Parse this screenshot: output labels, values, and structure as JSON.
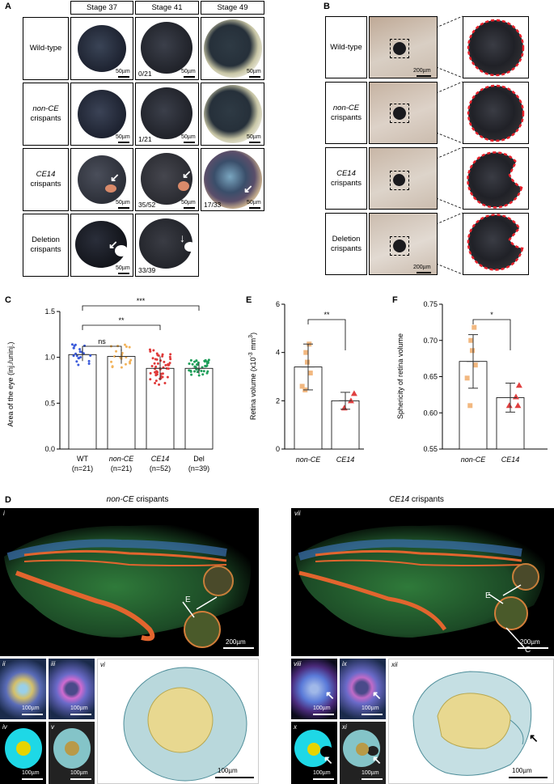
{
  "panelA": {
    "label": "A",
    "columns": [
      "Stage 37",
      "Stage 41",
      "Stage 49"
    ],
    "rows": [
      {
        "l1": "Wild-type",
        "l2": "",
        "italic": false
      },
      {
        "l1": "non-CE",
        "l2": "crispants",
        "italic": true
      },
      {
        "l1": "CE14",
        "l2": "crispants",
        "italic": true
      },
      {
        "l1": "Deletion",
        "l2": "crispants",
        "italic": false
      }
    ],
    "scale": "50µm",
    "fractions": {
      "wt41": "0/21",
      "nonce41": "1/21",
      "ce41": "35/52",
      "ce49": "17/33",
      "del41": "33/39"
    }
  },
  "panelB": {
    "label": "B",
    "rows": [
      {
        "l1": "Wild-type",
        "l2": "",
        "italic": false
      },
      {
        "l1": "non-CE",
        "l2": "crispants",
        "italic": true
      },
      {
        "l1": "CE14",
        "l2": "crispants",
        "italic": true
      },
      {
        "l1": "Deletion",
        "l2": "crispants",
        "italic": false
      }
    ],
    "scale": "200µm",
    "outline_color": "#e8202a"
  },
  "panelC": {
    "label": "C",
    "ns": "ns",
    "sig2": "**",
    "sig3": "***",
    "ylabel": "Area of the eye (inj./uninj.)",
    "cats": [
      {
        "a": "WT",
        "b": "(n=21)",
        "italic": false
      },
      {
        "a": "non-CE",
        "b": "(n=21)",
        "italic": true
      },
      {
        "a": "CE14",
        "b": "(n=52)",
        "italic": true
      },
      {
        "a": "Del",
        "b": "(n=39)",
        "italic": false
      }
    ],
    "ticks": [
      "0.0",
      "0.5",
      "1.0",
      "1.5"
    ]
  },
  "panelE": {
    "label": "E",
    "sig": "**",
    "ylabel_a": "Retina volume (x10",
    "ylabel_exp": "-3",
    "ylabel_b": " mm",
    "ylabel_exp2": "3",
    "ylabel_c": ")",
    "ticks": [
      "0",
      "2",
      "4",
      "6"
    ],
    "cats": [
      "non-CE",
      "CE14"
    ]
  },
  "panelF": {
    "label": "F",
    "sig": "*",
    "ylabel": "Sphericity of retina volume",
    "ticks": [
      "0.55",
      "0.60",
      "0.65",
      "0.70",
      "0.75"
    ],
    "cats": [
      "non-CE",
      "CE14"
    ]
  },
  "panelD": {
    "label": "D",
    "left_title_i": "non-CE",
    "left_title_r": " crispants",
    "right_title_i": "CE14",
    "right_title_r": " crispants",
    "labels_left": [
      "i",
      "ii",
      "iii",
      "iv",
      "v",
      "vi"
    ],
    "labels_right": [
      "vii",
      "viii",
      "ix",
      "x",
      "xi",
      "xii"
    ],
    "E": "E",
    "C": "C",
    "scale_big": "200µm",
    "scale_small": "100µm"
  },
  "chart_data": [
    {
      "type": "bar",
      "title": "",
      "ylabel": "Area of the eye (inj./uninj.)",
      "categories": [
        "WT (n=21)",
        "non-CE (n=21)",
        "CE14 (n=52)",
        "Del (n=39)"
      ],
      "values": [
        1.03,
        1.01,
        0.88,
        0.88
      ],
      "errors": [
        0.07,
        0.08,
        0.13,
        0.06
      ],
      "ylim": [
        0,
        1.5
      ],
      "colors": [
        "#3b5bdb",
        "#f2b35b",
        "#e03a3a",
        "#1f9e5a"
      ],
      "counts": [
        21,
        21,
        52,
        39
      ],
      "significance": [
        {
          "from": "WT",
          "to": "non-CE",
          "label": "ns"
        },
        {
          "from": "WT",
          "to": "CE14",
          "label": "**"
        },
        {
          "from": "WT",
          "to": "Del",
          "label": "***"
        }
      ]
    },
    {
      "type": "bar",
      "title": "",
      "ylabel": "Retina volume (x10-3 mm3)",
      "categories": [
        "non-CE",
        "CE14"
      ],
      "values": [
        3.4,
        2.0
      ],
      "errors": [
        0.95,
        0.35
      ],
      "points": [
        [
          4.35,
          4.0,
          3.6,
          3.15,
          2.6,
          2.45
        ],
        [
          2.3,
          2.0,
          1.7
        ]
      ],
      "ylim": [
        0,
        6
      ],
      "colors": [
        "#f2b880",
        "#e04040"
      ],
      "significance": [
        {
          "from": "non-CE",
          "to": "CE14",
          "label": "**"
        }
      ]
    },
    {
      "type": "bar",
      "title": "",
      "ylabel": "Sphericity of retina volume",
      "categories": [
        "non-CE",
        "CE14"
      ],
      "values": [
        0.671,
        0.621
      ],
      "errors": [
        0.037,
        0.02
      ],
      "points": [
        [
          0.718,
          0.7,
          0.686,
          0.666,
          0.648,
          0.61
        ],
        [
          0.638,
          0.622,
          0.61,
          0.61
        ]
      ],
      "ylim": [
        0.55,
        0.75
      ],
      "colors": [
        "#f2b880",
        "#e04040"
      ],
      "significance": [
        {
          "from": "non-CE",
          "to": "CE14",
          "label": "*"
        }
      ]
    }
  ]
}
